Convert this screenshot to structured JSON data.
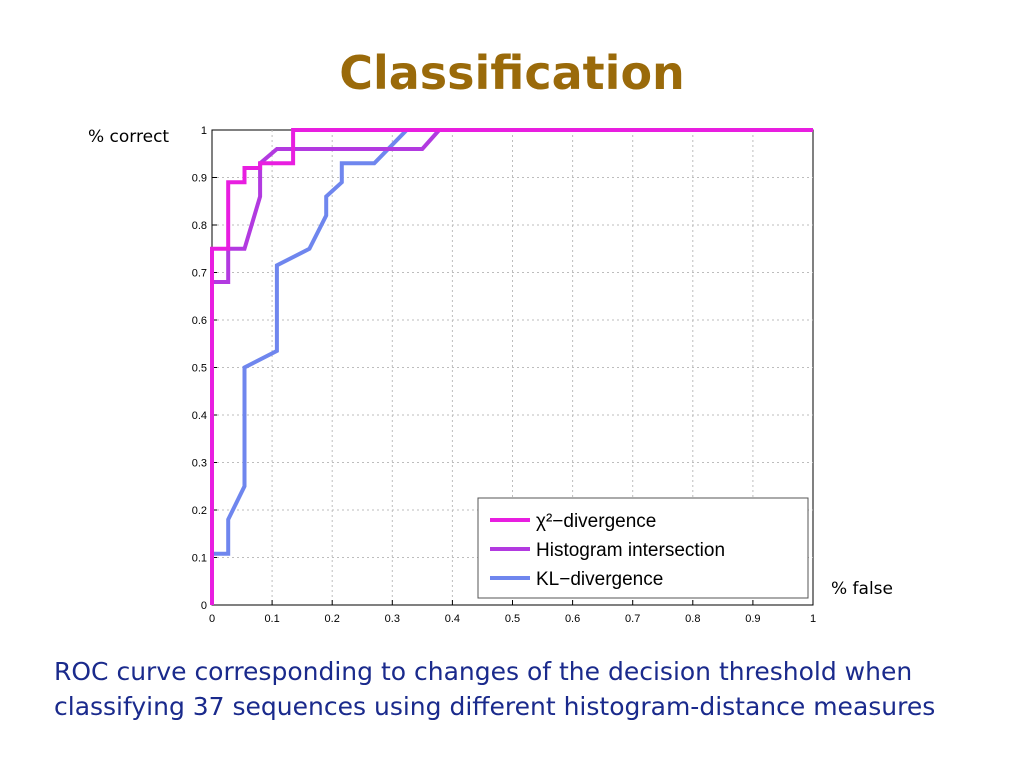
{
  "slide": {
    "title": "Classification",
    "caption": "ROC curve corresponding to changes of the decision threshold when classifying 37 sequences using different histogram-distance measures"
  },
  "chart_data": {
    "type": "line",
    "ylabel": "% correct",
    "xlabel": "% false",
    "xlim": [
      0,
      1
    ],
    "ylim": [
      0,
      1
    ],
    "grid": true,
    "legend_position": "bottom-right",
    "x_ticks": [
      "0",
      "0.1",
      "0.2",
      "0.3",
      "0.4",
      "0.5",
      "0.6",
      "0.7",
      "0.8",
      "0.9",
      "1"
    ],
    "y_ticks": [
      "0",
      "0.1",
      "0.2",
      "0.3",
      "0.4",
      "0.5",
      "0.6",
      "0.7",
      "0.8",
      "0.9",
      "1"
    ],
    "series": [
      {
        "name": "χ²−divergence",
        "color": "#e81ee0",
        "points": [
          [
            0,
            0
          ],
          [
            0,
            0.75
          ],
          [
            0.027,
            0.75
          ],
          [
            0.027,
            0.89
          ],
          [
            0.054,
            0.89
          ],
          [
            0.054,
            0.92
          ],
          [
            0.08,
            0.92
          ],
          [
            0.08,
            0.93
          ],
          [
            0.135,
            0.93
          ],
          [
            0.135,
            1
          ],
          [
            1,
            1
          ]
        ]
      },
      {
        "name": "Histogram intersection",
        "color": "#b23ae0",
        "points": [
          [
            0,
            0
          ],
          [
            0,
            0.68
          ],
          [
            0.027,
            0.68
          ],
          [
            0.027,
            0.75
          ],
          [
            0.054,
            0.75
          ],
          [
            0.08,
            0.86
          ],
          [
            0.08,
            0.93
          ],
          [
            0.108,
            0.96
          ],
          [
            0.35,
            0.96
          ],
          [
            0.378,
            1
          ],
          [
            1,
            1
          ]
        ]
      },
      {
        "name": "KL−divergence",
        "color": "#6f86ee",
        "points": [
          [
            0,
            0
          ],
          [
            0,
            0.108
          ],
          [
            0.027,
            0.108
          ],
          [
            0.027,
            0.18
          ],
          [
            0.054,
            0.25
          ],
          [
            0.054,
            0.5
          ],
          [
            0.108,
            0.535
          ],
          [
            0.108,
            0.715
          ],
          [
            0.162,
            0.75
          ],
          [
            0.19,
            0.82
          ],
          [
            0.19,
            0.86
          ],
          [
            0.216,
            0.89
          ],
          [
            0.216,
            0.93
          ],
          [
            0.27,
            0.93
          ],
          [
            0.324,
            1
          ],
          [
            1,
            1
          ]
        ]
      }
    ]
  }
}
